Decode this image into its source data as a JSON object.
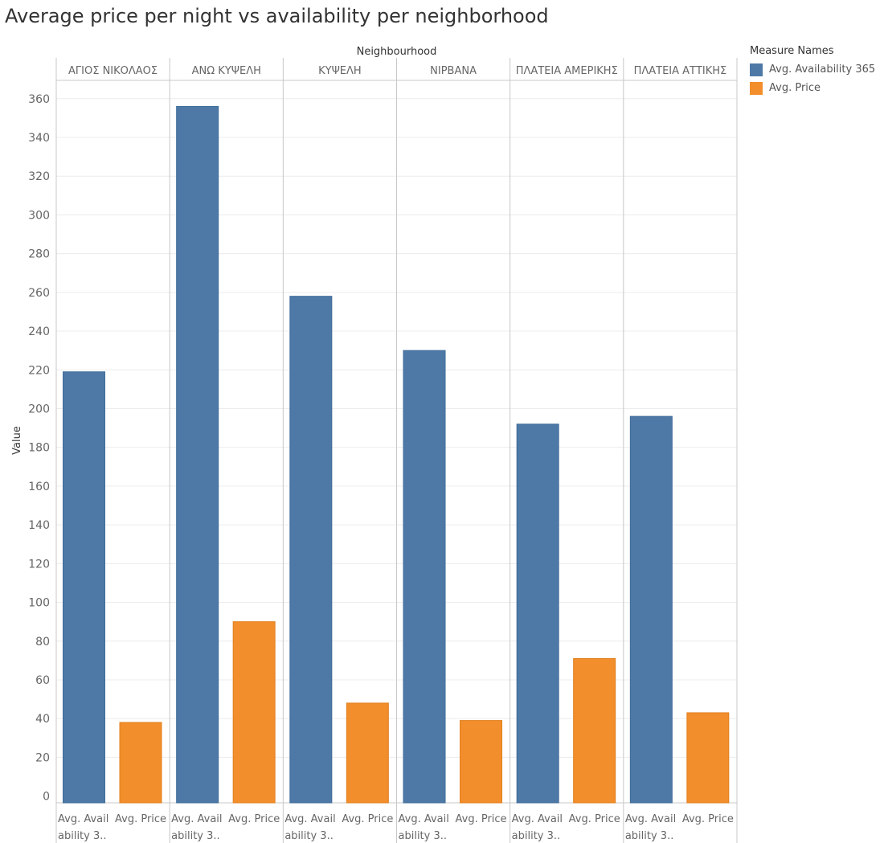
{
  "chart_data": {
    "type": "bar",
    "title": "Average price per night vs availability per neighborhood",
    "column_header": "Neighbourhood",
    "ylabel": "Value",
    "ylim": [
      0,
      370
    ],
    "yticks": [
      0,
      20,
      40,
      60,
      80,
      100,
      120,
      140,
      160,
      180,
      200,
      220,
      240,
      260,
      280,
      300,
      320,
      340,
      360
    ],
    "grid": true,
    "legend_position": "top-right",
    "legend_title": "Measure Names",
    "categories": [
      "ΑΓΙΟΣ ΝΙΚΟΛΑΟΣ",
      "ΑΝΩ ΚΥΨΕΛΗ",
      "ΚΥΨΕΛΗ",
      "ΝΙΡΒΑΝΑ",
      "ΠΛΑΤΕΙΑ ΑΜΕΡΙΚΗΣ",
      "ΠΛΑΤΕΙΑ ΑΤΤΙΚΗΣ"
    ],
    "sub_labels": [
      [
        "Avg. Avail",
        "ability 3.."
      ],
      [
        "Avg. Price"
      ]
    ],
    "series": [
      {
        "name": "Avg. Availability 365",
        "color": "#4e79a7",
        "values": [
          219,
          356,
          258,
          230,
          192,
          196
        ]
      },
      {
        "name": "Avg. Price",
        "color": "#f28e2b",
        "values": [
          38,
          90,
          48,
          39,
          71,
          43
        ]
      }
    ]
  }
}
